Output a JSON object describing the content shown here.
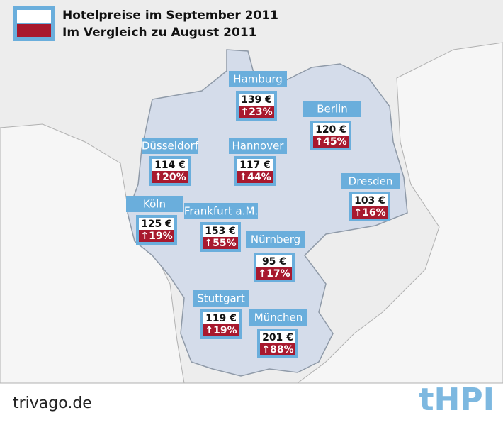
{
  "legend": {
    "price_label": "Hotelpreise im September 2011",
    "change_label": "Im Vergleich zu August 2011"
  },
  "cities": [
    {
      "name": "Hamburg",
      "price": "139 €",
      "change": "↑23%"
    },
    {
      "name": "Berlin",
      "price": "120 €",
      "change": "↑45%"
    },
    {
      "name": "Düsseldorf",
      "price": "114 €",
      "change": "↑20%"
    },
    {
      "name": "Hannover",
      "price": "117 €",
      "change": "↑44%"
    },
    {
      "name": "Dresden",
      "price": "103 €",
      "change": "↑16%"
    },
    {
      "name": "Köln",
      "price": "125 €",
      "change": "↑19%"
    },
    {
      "name": "Frankfurt a.M.",
      "price": "153 €",
      "change": "↑55%"
    },
    {
      "name": "Nürnberg",
      "price": "95 €",
      "change": "↑17%"
    },
    {
      "name": "Stuttgart",
      "price": "119 €",
      "change": "↑19%"
    },
    {
      "name": "München",
      "price": "201 €",
      "change": "↑88%"
    }
  ],
  "footer": {
    "source": "trivago.de",
    "logo": "tHPI"
  }
}
